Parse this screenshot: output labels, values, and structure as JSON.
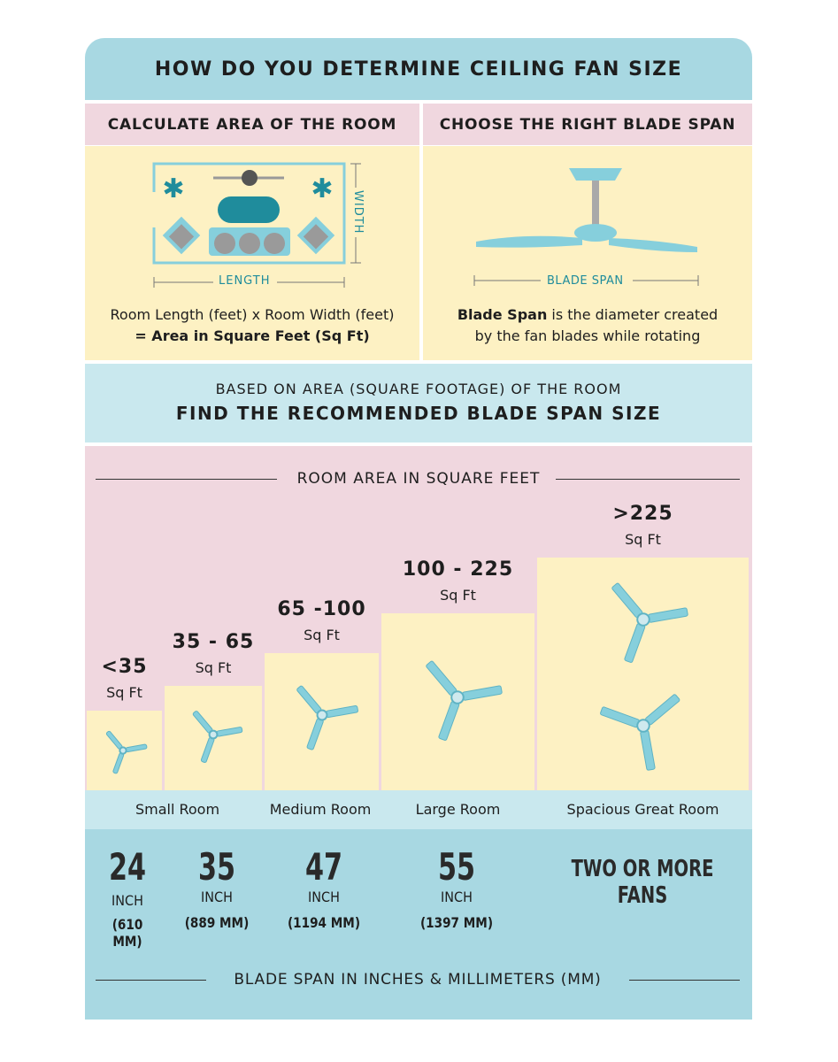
{
  "title": "HOW DO YOU DETERMINE CEILING FAN SIZE",
  "left_panel": {
    "header": "CALCULATE AREA OF THE ROOM",
    "width_label": "WIDTH",
    "length_label": "LENGTH",
    "formula_line1": "Room Length (feet) x Room Width (feet)",
    "formula_line2": "= Area in Square Feet (Sq Ft)"
  },
  "right_panel": {
    "header": "CHOOSE THE RIGHT BLADE SPAN",
    "span_label": "BLADE SPAN",
    "desc_bold": "Blade Span",
    "desc_rest": " is the diameter created",
    "desc_line2": "by the fan blades while rotating"
  },
  "band": {
    "subtitle": "BASED ON AREA (SQUARE FOOTAGE) OF THE ROOM",
    "title": "FIND THE RECOMMENDED BLADE SPAN SIZE"
  },
  "area_section": {
    "heading": "ROOM AREA IN SQUARE FEET",
    "unit": "Sq Ft",
    "tiers": [
      {
        "range": "<35"
      },
      {
        "range": "35 - 65"
      },
      {
        "range": "65 -100"
      },
      {
        "range": "100 - 225"
      },
      {
        "range": ">225"
      }
    ]
  },
  "rooms": [
    "Small Room",
    "Medium Room",
    "Large Room",
    "Spacious Great Room"
  ],
  "sizes": [
    {
      "inch": "24",
      "unit": "INCH",
      "mm": "(610 MM)"
    },
    {
      "inch": "35",
      "unit": "INCH",
      "mm": "(889 MM)"
    },
    {
      "inch": "47",
      "unit": "INCH",
      "mm": "(1194 MM)"
    },
    {
      "inch": "55",
      "unit": "INCH",
      "mm": "(1397 MM)"
    }
  ],
  "multi": "TWO OR MORE FANS",
  "footer": "BLADE SPAN IN INCHES & MILLIMETERS (MM)",
  "colors": {
    "blue": "#a8d8e2",
    "pink": "#f0d7df",
    "yellow": "#fdf1c3",
    "teal": "#1f8c9c",
    "fan": "#86cfdc"
  }
}
